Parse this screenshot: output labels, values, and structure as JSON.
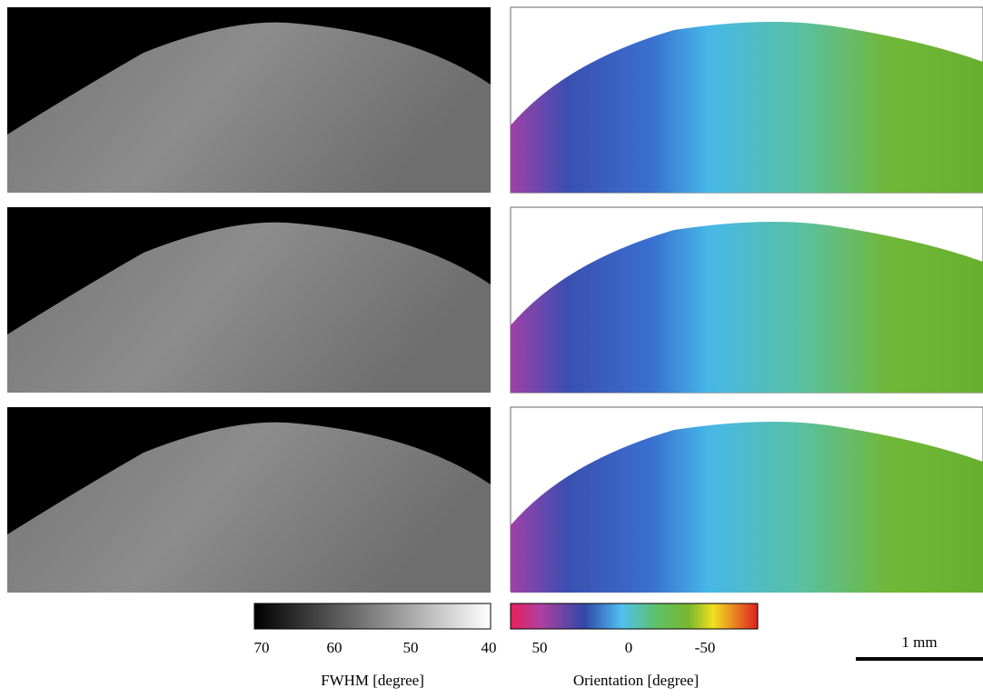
{
  "colorbars": [
    {
      "label": "FWHM [degree]",
      "ticks": [
        70,
        60,
        50,
        40
      ]
    },
    {
      "label": "Orientation [degree]",
      "ticks": [
        50,
        0,
        -50
      ]
    }
  ],
  "scale_bar": {
    "label": "1 mm"
  }
}
